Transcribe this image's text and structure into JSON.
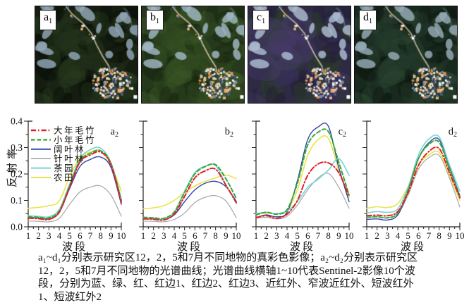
{
  "figure_bg": "#ffffff",
  "image_panels": [
    {
      "label": "a1",
      "palette": {
        "base": "#151d10",
        "dark": "#0a0f08",
        "mid": "#20301a",
        "mid2": "#283a1e",
        "patch": "#8fa3b3",
        "road": "#c8bca2"
      }
    },
    {
      "label": "b1",
      "palette": {
        "base": "#26391c",
        "dark": "#172810",
        "mid": "#2f471f",
        "mid2": "#3a5524",
        "patch": "#9db4c0",
        "road": "#cfc3a8"
      }
    },
    {
      "label": "c1",
      "palette": {
        "base": "#2f2a44",
        "dark": "#241e38",
        "mid": "#2a3e24",
        "mid2": "#383057",
        "patch": "#a9b8cc",
        "road": "#c6bba8",
        "overlay": "#453a68"
      }
    },
    {
      "label": "d1",
      "palette": {
        "base": "#182a1e",
        "dark": "#0d1710",
        "mid": "#223829",
        "mid2": "#2a4430",
        "patch": "#93a8b3",
        "road": "#c2b79f"
      }
    }
  ],
  "axes": {
    "ylabel": "反射率",
    "xlabel": "波段",
    "yticks": [
      "0.0",
      "0.1",
      "0.2",
      "0.3",
      "0.4"
    ],
    "xticks": [
      "1",
      "2",
      "3",
      "4",
      "5",
      "6",
      "7",
      "8",
      "9",
      "10"
    ],
    "ymax": 0.4
  },
  "legend": [
    {
      "label": "大年毛竹",
      "color": "#e31f26",
      "dash": "dashdot",
      "width": 2
    },
    {
      "label": "小年毛竹",
      "color": "#3aa83a",
      "dash": "dashed",
      "width": 2
    },
    {
      "label": "阔叶林",
      "color": "#3143a3",
      "dash": "solid",
      "width": 1.4
    },
    {
      "label": "针叶林",
      "color": "#a8a8a8",
      "dash": "solid",
      "width": 1.2
    },
    {
      "label": "茶园",
      "color": "#78d4d8",
      "dash": "solid",
      "width": 1.6
    },
    {
      "label": "农田",
      "color": "#e8e44a",
      "dash": "solid",
      "width": 1.6
    }
  ],
  "chart_data": [
    {
      "type": "line",
      "label": "a2",
      "xlabel": "波段",
      "ylabel": "反射率",
      "x": [
        1,
        2,
        3,
        4,
        5,
        6,
        7,
        8,
        9,
        10
      ],
      "ylim": [
        0,
        0.4
      ],
      "legend_position": "upper-left",
      "series": [
        {
          "name": "针叶林",
          "values": [
            0.022,
            0.021,
            0.019,
            0.032,
            0.085,
            0.132,
            0.15,
            0.155,
            0.12,
            0.04
          ]
        },
        {
          "name": "农田",
          "values": [
            0.07,
            0.074,
            0.08,
            0.098,
            0.19,
            0.262,
            0.283,
            0.288,
            0.235,
            0.135
          ]
        },
        {
          "name": "阔叶林",
          "values": [
            0.035,
            0.034,
            0.03,
            0.055,
            0.145,
            0.228,
            0.255,
            0.264,
            0.225,
            0.085
          ]
        },
        {
          "name": "茶园",
          "values": [
            0.042,
            0.04,
            0.038,
            0.066,
            0.162,
            0.258,
            0.292,
            0.298,
            0.243,
            0.105
          ]
        },
        {
          "name": "小年毛竹",
          "values": [
            0.038,
            0.036,
            0.034,
            0.06,
            0.155,
            0.25,
            0.278,
            0.288,
            0.24,
            0.1
          ]
        },
        {
          "name": "大年毛竹",
          "values": [
            0.033,
            0.031,
            0.028,
            0.055,
            0.15,
            0.245,
            0.272,
            0.283,
            0.235,
            0.092
          ]
        }
      ]
    },
    {
      "type": "line",
      "label": "b2",
      "xlabel": "波段",
      "ylabel": "",
      "x": [
        1,
        2,
        3,
        4,
        5,
        6,
        7,
        8,
        9,
        10
      ],
      "ylim": [
        0,
        0.4
      ],
      "series": [
        {
          "name": "针叶林",
          "values": [
            0.021,
            0.021,
            0.019,
            0.028,
            0.052,
            0.092,
            0.112,
            0.118,
            0.098,
            0.035
          ]
        },
        {
          "name": "农田",
          "values": [
            0.068,
            0.072,
            0.08,
            0.1,
            0.13,
            0.155,
            0.172,
            0.185,
            0.196,
            0.183
          ]
        },
        {
          "name": "阔叶林",
          "values": [
            0.03,
            0.03,
            0.028,
            0.045,
            0.095,
            0.14,
            0.165,
            0.172,
            0.152,
            0.097
          ]
        },
        {
          "name": "茶园",
          "values": [
            0.033,
            0.032,
            0.03,
            0.055,
            0.135,
            0.205,
            0.23,
            0.232,
            0.158,
            0.088
          ]
        },
        {
          "name": "小年毛竹",
          "values": [
            0.036,
            0.034,
            0.032,
            0.056,
            0.13,
            0.2,
            0.228,
            0.235,
            0.182,
            0.108
          ]
        },
        {
          "name": "大年毛竹",
          "values": [
            0.03,
            0.029,
            0.026,
            0.048,
            0.115,
            0.185,
            0.212,
            0.218,
            0.158,
            0.092
          ]
        }
      ]
    },
    {
      "type": "line",
      "label": "c2",
      "xlabel": "波段",
      "ylabel": "",
      "x": [
        1,
        2,
        3,
        4,
        5,
        6,
        7,
        8,
        9,
        10
      ],
      "ylim": [
        0,
        0.4
      ],
      "series": [
        {
          "name": "针叶林",
          "values": [
            0.032,
            0.036,
            0.03,
            0.04,
            0.082,
            0.14,
            0.185,
            0.202,
            0.15,
            0.07
          ]
        },
        {
          "name": "农田",
          "values": [
            0.048,
            0.052,
            0.05,
            0.06,
            0.14,
            0.27,
            0.33,
            0.335,
            0.215,
            0.11
          ]
        },
        {
          "name": "阔叶林",
          "values": [
            0.035,
            0.045,
            0.038,
            0.055,
            0.175,
            0.33,
            0.378,
            0.38,
            0.225,
            0.095
          ]
        },
        {
          "name": "茶园",
          "values": [
            0.05,
            0.055,
            0.05,
            0.06,
            0.095,
            0.15,
            0.18,
            0.215,
            0.258,
            0.195
          ]
        },
        {
          "name": "小年毛竹",
          "values": [
            0.045,
            0.055,
            0.048,
            0.065,
            0.165,
            0.31,
            0.358,
            0.36,
            0.245,
            0.12
          ]
        },
        {
          "name": "大年毛竹",
          "values": [
            0.035,
            0.042,
            0.032,
            0.048,
            0.1,
            0.195,
            0.238,
            0.242,
            0.205,
            0.115
          ]
        }
      ]
    },
    {
      "type": "line",
      "label": "d2",
      "xlabel": "波段",
      "ylabel": "",
      "x": [
        1,
        2,
        3,
        4,
        5,
        6,
        7,
        8,
        9,
        10
      ],
      "ylim": [
        0,
        0.4
      ],
      "series": [
        {
          "name": "针叶林",
          "values": [
            0.036,
            0.038,
            0.035,
            0.05,
            0.12,
            0.218,
            0.262,
            0.27,
            0.185,
            0.075
          ]
        },
        {
          "name": "农田",
          "values": [
            0.07,
            0.076,
            0.073,
            0.088,
            0.152,
            0.235,
            0.272,
            0.282,
            0.195,
            0.1
          ]
        },
        {
          "name": "阔叶林",
          "values": [
            0.028,
            0.03,
            0.026,
            0.045,
            0.135,
            0.258,
            0.318,
            0.33,
            0.225,
            0.118
          ]
        },
        {
          "name": "茶园",
          "values": [
            0.052,
            0.058,
            0.055,
            0.068,
            0.15,
            0.272,
            0.332,
            0.34,
            0.235,
            0.135
          ]
        },
        {
          "name": "小年毛竹",
          "values": [
            0.036,
            0.038,
            0.034,
            0.052,
            0.14,
            0.258,
            0.312,
            0.32,
            0.218,
            0.112
          ]
        },
        {
          "name": "大年毛竹",
          "values": [
            0.042,
            0.044,
            0.042,
            0.058,
            0.13,
            0.232,
            0.285,
            0.296,
            0.205,
            0.11
          ]
        }
      ]
    }
  ],
  "caption": {
    "lines": [
      "a₁~d₁分别表示研究区12，2，5和7月不同地物的真彩色影像；a₂~d₂分别表示研究区",
      "12，2，5和7月不同地物的光谱曲线；光谱曲线横轴1~10代表Sentinel-2影像10个波",
      "段，分别为蓝、绿、红、红边1、红边2、红边3、近红外、窄波近红外、短波红外",
      "1、短波红外2"
    ]
  }
}
